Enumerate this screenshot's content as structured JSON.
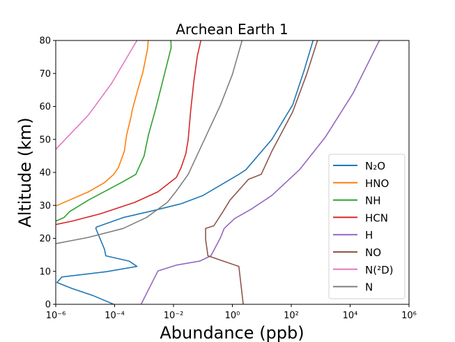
{
  "chart_data": {
    "type": "line",
    "title": "Archean Earth 1",
    "xlabel": "Abundance (ppb)",
    "ylabel": "Altitude (km)",
    "xscale": "log",
    "xlim": [
      1e-06,
      1000000.0
    ],
    "ylim": [
      0,
      80
    ],
    "xticks": [
      1e-06,
      0.0001,
      0.01,
      1.0,
      100.0,
      10000.0,
      1000000.0
    ],
    "xtick_labels": [
      "10⁻⁶",
      "10⁻⁴",
      "10⁻²",
      "10⁰",
      "10²",
      "10⁴",
      "10⁶"
    ],
    "yticks": [
      0,
      10,
      20,
      30,
      40,
      50,
      60,
      70,
      80
    ],
    "ytick_labels": [
      "0",
      "10",
      "20",
      "30",
      "40",
      "50",
      "60",
      "70",
      "80"
    ],
    "grid": false,
    "legend_position": "lower-right",
    "series": [
      {
        "name": "N₂O",
        "color": "#1f77b4",
        "log10_x": [
          -4.03,
          -4.75,
          -5.45,
          -5.96,
          -5.79,
          -4.27,
          -3.24,
          -3.51,
          -4.3,
          -4.34,
          -4.64,
          -4.62,
          -3.71,
          -2.69,
          -1.74,
          -1.0,
          0.22,
          0.46,
          1.34,
          2.05,
          2.44,
          2.74
        ],
        "y": [
          0,
          2.7,
          4.8,
          6.6,
          8.3,
          9.9,
          11.5,
          13.1,
          14.7,
          16.6,
          23.0,
          23.4,
          26.3,
          28.4,
          30.5,
          33.0,
          39.4,
          40.8,
          50,
          60.5,
          71,
          80
        ]
      },
      {
        "name": "HNO",
        "color": "#ff7f0e",
        "log10_x": [
          -6.0,
          -4.89,
          -4.34,
          -4.03,
          -3.87,
          -3.67,
          -3.59,
          -3.44,
          -3.4,
          -3.2,
          -3.04,
          -2.88,
          -2.86
        ],
        "y": [
          29.8,
          34.1,
          36.9,
          39.4,
          41.5,
          46.4,
          51.4,
          57,
          59,
          65.5,
          70.4,
          77.5,
          80
        ]
      },
      {
        "name": "NH",
        "color": "#2ca02c",
        "log10_x": [
          -6.0,
          -5.72,
          -5.53,
          -4.89,
          -3.71,
          -3.28,
          -3.0,
          -2.85,
          -2.61,
          -2.37,
          -2.21,
          -2.08,
          -2.09
        ],
        "y": [
          25.2,
          26.3,
          28.1,
          31.6,
          37.2,
          39.4,
          45,
          51.4,
          59.1,
          67.6,
          73.2,
          77.8,
          80
        ]
      },
      {
        "name": "HCN",
        "color": "#d62728",
        "log10_x": [
          -6.0,
          -5.45,
          -4.5,
          -3.32,
          -2.53,
          -1.9,
          -1.74,
          -1.58,
          -1.5,
          -1.42,
          -1.31,
          -1.19,
          -1.07
        ],
        "y": [
          24.2,
          25.2,
          27.4,
          30.9,
          34.1,
          38.5,
          41.5,
          45.7,
          50,
          58.4,
          67.6,
          75.3,
          80
        ]
      },
      {
        "name": "H",
        "color": "#9467bd",
        "log10_x": [
          -3.1,
          -2.53,
          -1.9,
          -1.11,
          -0.73,
          -0.4,
          -0.28,
          0.08,
          0.63,
          1.34,
          2.28,
          3.15,
          4.1,
          4.97,
          5.0
        ],
        "y": [
          0,
          10.1,
          11.9,
          13.1,
          14.7,
          20.3,
          23.0,
          26.0,
          28.8,
          33,
          40.8,
          50.6,
          64,
          79.6,
          80
        ]
      },
      {
        "name": "NO",
        "color": "#8c564b",
        "log10_x": [
          0.37,
          0.22,
          -0.83,
          -0.86,
          -0.91,
          -0.91,
          -0.63,
          -0.32,
          -0.08,
          0.55,
          0.98,
          1.34,
          2.05,
          2.52,
          2.89
        ],
        "y": [
          0,
          11.5,
          14.7,
          16.6,
          19.6,
          23.0,
          23.8,
          28.1,
          31.6,
          37.9,
          39.4,
          46.4,
          58.4,
          69.7,
          80
        ]
      },
      {
        "name": "N(²D)",
        "color": "#e377c2",
        "log10_x": [
          -6.0,
          -4.89,
          -4.11,
          -3.24
        ],
        "y": [
          47,
          57.4,
          66.9,
          80
        ]
      },
      {
        "name": "N",
        "color": "#7f7f7f",
        "log10_x": [
          -6.0,
          -4.89,
          -3.71,
          -2.92,
          -2.21,
          -1.9,
          -1.5,
          -0.95,
          -0.4,
          0.0,
          0.33
        ],
        "y": [
          18.4,
          20.3,
          23.0,
          26.3,
          30.9,
          34.4,
          39.4,
          50,
          60.5,
          69.7,
          80
        ]
      }
    ]
  }
}
